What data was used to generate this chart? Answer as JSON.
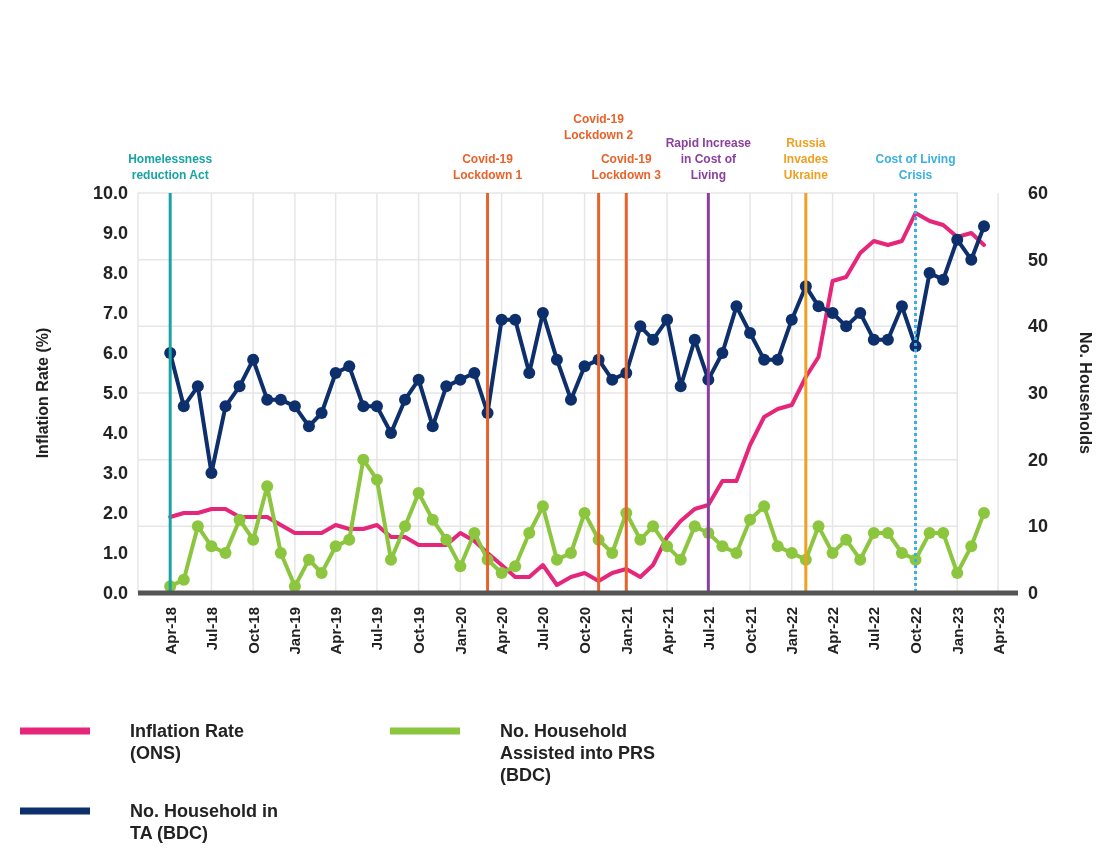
{
  "chart_data": {
    "type": "line",
    "xlabel": null,
    "ylabel": "Inflation Rate (%)",
    "y2label": "No. Households",
    "x": [
      "2018-04",
      "2018-05",
      "2018-06",
      "2018-07",
      "2018-08",
      "2018-09",
      "2018-10",
      "2018-11",
      "2018-12",
      "2019-01",
      "2019-02",
      "2019-03",
      "2019-04",
      "2019-05",
      "2019-06",
      "2019-07",
      "2019-08",
      "2019-09",
      "2019-10",
      "2019-11",
      "2019-12",
      "2020-01",
      "2020-02",
      "2020-03",
      "2020-04",
      "2020-05",
      "2020-06",
      "2020-07",
      "2020-08",
      "2020-09",
      "2020-10",
      "2020-11",
      "2020-12",
      "2021-01",
      "2021-02",
      "2021-03",
      "2021-04",
      "2021-05",
      "2021-06",
      "2021-07",
      "2021-08",
      "2021-09",
      "2021-10",
      "2021-11",
      "2021-12",
      "2022-01",
      "2022-02",
      "2022-03",
      "2022-04",
      "2022-05",
      "2022-06",
      "2022-07",
      "2022-08",
      "2022-09",
      "2022-10",
      "2022-11",
      "2022-12",
      "2023-01",
      "2023-02",
      "2023-03"
    ],
    "series": [
      {
        "name": "Inflation Rate (ONS)",
        "color": "#e5267a",
        "marker": "none",
        "values": [
          1.9,
          2.0,
          2.0,
          2.1,
          2.1,
          1.9,
          1.9,
          1.9,
          1.7,
          1.5,
          1.5,
          1.5,
          1.7,
          1.6,
          1.6,
          1.7,
          1.4,
          1.4,
          1.2,
          1.2,
          1.2,
          1.5,
          1.3,
          1.0,
          0.7,
          0.4,
          0.4,
          0.7,
          0.2,
          0.4,
          0.5,
          0.3,
          0.5,
          0.6,
          0.4,
          0.7,
          1.4,
          1.8,
          2.1,
          2.2,
          2.8,
          2.8,
          3.7,
          4.4,
          4.6,
          4.7,
          5.4,
          5.9,
          7.8,
          7.9,
          8.5,
          8.8,
          8.7,
          8.8,
          9.5,
          9.3,
          9.2,
          8.9,
          9.0,
          8.7
        ]
      },
      {
        "name": "No. Household in TA (BDC)",
        "color": "#0d2f6b",
        "marker": "circle",
        "axis": "y2",
        "values": [
          36,
          28,
          31,
          18,
          28,
          31,
          35,
          29,
          29,
          28,
          25,
          27,
          33,
          34,
          28,
          28,
          24,
          29,
          32,
          25,
          31,
          32,
          33,
          27,
          41,
          41,
          33,
          42,
          35,
          29,
          34,
          35,
          32,
          33,
          40,
          38,
          41,
          31,
          38,
          32,
          36,
          43,
          39,
          35,
          35,
          41,
          46,
          43,
          42,
          40,
          42,
          38,
          38,
          43,
          37,
          48,
          47,
          53,
          50,
          55
        ]
      },
      {
        "name": "No. Household Assisted into PRS (BDC)",
        "color": "#8cc63f",
        "marker": "circle",
        "axis": "y2",
        "values": [
          1,
          2,
          10,
          7,
          6,
          11,
          8,
          16,
          6,
          1,
          5,
          3,
          7,
          8,
          20,
          17,
          5,
          10,
          15,
          11,
          8,
          4,
          9,
          5,
          3,
          4,
          9,
          13,
          5,
          6,
          12,
          8,
          6,
          12,
          8,
          10,
          7,
          5,
          10,
          9,
          7,
          6,
          11,
          13,
          7,
          6,
          5,
          10,
          6,
          8,
          5,
          9,
          9,
          6,
          5,
          9,
          9,
          3,
          7,
          12
        ]
      }
    ],
    "xlim": [
      "2018-01-20",
      "2023-05-15"
    ],
    "xticks": [
      {
        "value": "2018-04",
        "label": "Apr-18"
      },
      {
        "value": "2018-07",
        "label": "Jul-18"
      },
      {
        "value": "2018-10",
        "label": "Oct-18"
      },
      {
        "value": "2019-01",
        "label": "Jan-19"
      },
      {
        "value": "2019-04",
        "label": "Apr-19"
      },
      {
        "value": "2019-07",
        "label": "Jul-19"
      },
      {
        "value": "2019-10",
        "label": "Oct-19"
      },
      {
        "value": "2020-01",
        "label": "Jan-20"
      },
      {
        "value": "2020-04",
        "label": "Apr-20"
      },
      {
        "value": "2020-07",
        "label": "Jul-20"
      },
      {
        "value": "2020-10",
        "label": "Oct-20"
      },
      {
        "value": "2021-01",
        "label": "Jan-21"
      },
      {
        "value": "2021-04",
        "label": "Apr-21"
      },
      {
        "value": "2021-07",
        "label": "Jul-21"
      },
      {
        "value": "2021-10",
        "label": "Oct-21"
      },
      {
        "value": "2022-01",
        "label": "Jan-22"
      },
      {
        "value": "2022-04",
        "label": "Apr-22"
      },
      {
        "value": "2022-07",
        "label": "Jul-22"
      },
      {
        "value": "2022-10",
        "label": "Oct-22"
      },
      {
        "value": "2023-01",
        "label": "Jan-23"
      },
      {
        "value": "2023-04",
        "label": "Apr-23"
      }
    ],
    "ylim": [
      0,
      10
    ],
    "yticks": [
      {
        "value": 0,
        "label": "0.0"
      },
      {
        "value": 1,
        "label": "1.0"
      },
      {
        "value": 2,
        "label": "2.0"
      },
      {
        "value": 3,
        "label": "3.0"
      },
      {
        "value": 4,
        "label": "4.0"
      },
      {
        "value": 5,
        "label": "5.0"
      },
      {
        "value": 6,
        "label": "6.0"
      },
      {
        "value": 7,
        "label": "7.0"
      },
      {
        "value": 8,
        "label": "8.0"
      },
      {
        "value": 9,
        "label": "9.0"
      },
      {
        "value": 10,
        "label": "10.0"
      }
    ],
    "y2lim": [
      0,
      60
    ],
    "y2ticks": [
      0,
      10,
      20,
      30,
      40,
      50,
      60
    ],
    "grid": true,
    "legend": "bottom",
    "ref_lines": [
      {
        "axis": "x",
        "value": "2018-04",
        "label": "Homelessness\nreduction Act",
        "color": "#1aa3a3",
        "line_style": "solid"
      },
      {
        "axis": "x",
        "value": "2020-03",
        "label": "Covid-19\nLockdown 1",
        "color": "#e8632a",
        "line_style": "solid"
      },
      {
        "axis": "x",
        "value": "2020-11",
        "label": "Covid-19\nLockdown 2",
        "color": "#e8632a",
        "line_style": "solid"
      },
      {
        "axis": "x",
        "value": "2021-01",
        "label": "Covid-19\nLockdown 3",
        "color": "#e8632a",
        "line_style": "solid"
      },
      {
        "axis": "x",
        "value": "2021-07",
        "label": "Rapid Increase\nin Cost of\nLiving",
        "color": "#8b3fa0",
        "line_style": "solid"
      },
      {
        "axis": "x",
        "value": "2022-02",
        "label": "Russia\nInvades\nUkraine",
        "color": "#f0a020",
        "line_style": "solid"
      },
      {
        "axis": "x",
        "value": "2022-10",
        "label": "Cost of Living\nCrisis",
        "color": "#3bb0e0",
        "line_style": "dotted"
      }
    ]
  }
}
